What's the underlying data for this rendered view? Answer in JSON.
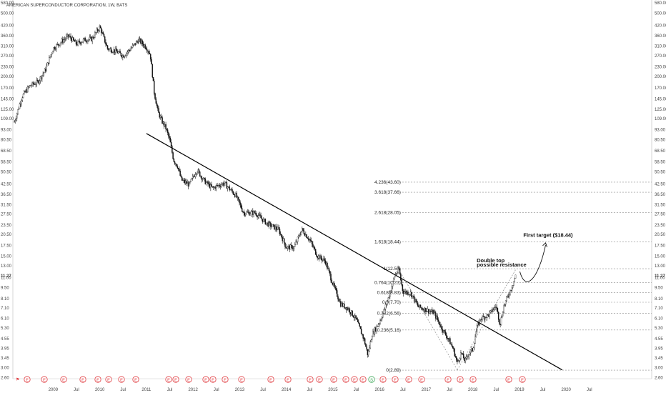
{
  "chart_data": {
    "type": "candlestick",
    "title": "AMERICAN SUPERCONDUCTOR CORPORATION, 1W, BATS",
    "y_scale": "log",
    "ylim": [
      2.28,
      580.0
    ],
    "x_range": [
      "2008-03",
      "2020-12"
    ],
    "last_price": "11.27",
    "y_ticks": [
      "580.00",
      "500.00",
      "420.00",
      "360.00",
      "310.00",
      "270.00",
      "230.00",
      "200.00",
      "170.00",
      "145.00",
      "125.00",
      "109.00",
      "93.00",
      "80.50",
      "68.50",
      "58.50",
      "50.50",
      "42.50",
      "36.50",
      "31.50",
      "27.50",
      "23.50",
      "20.50",
      "17.50",
      "15.00",
      "13.00",
      "11.00",
      "9.50",
      "8.10",
      "7.10",
      "6.10",
      "5.30",
      "4.55",
      "3.95",
      "3.45",
      "3.00",
      "2.60",
      "2.28"
    ],
    "x_ticks": [
      {
        "label": "2009",
        "date": "2009-01"
      },
      {
        "label": "Jul",
        "date": "2009-07"
      },
      {
        "label": "2010",
        "date": "2010-01"
      },
      {
        "label": "Jul",
        "date": "2010-07"
      },
      {
        "label": "2011",
        "date": "2011-01"
      },
      {
        "label": "Jul",
        "date": "2011-07"
      },
      {
        "label": "2012",
        "date": "2012-01"
      },
      {
        "label": "Jul",
        "date": "2012-07"
      },
      {
        "label": "2013",
        "date": "2013-01"
      },
      {
        "label": "Jul",
        "date": "2013-07"
      },
      {
        "label": "2014",
        "date": "2014-01"
      },
      {
        "label": "Jul",
        "date": "2014-07"
      },
      {
        "label": "2015",
        "date": "2015-01"
      },
      {
        "label": "Jul",
        "date": "2015-07"
      },
      {
        "label": "2016",
        "date": "2016-01"
      },
      {
        "label": "Jul",
        "date": "2016-07"
      },
      {
        "label": "2017",
        "date": "2017-01"
      },
      {
        "label": "Jul",
        "date": "2017-07"
      },
      {
        "label": "2018",
        "date": "2018-01"
      },
      {
        "label": "Jul",
        "date": "2018-07"
      },
      {
        "label": "2019",
        "date": "2019-01"
      },
      {
        "label": "Jul",
        "date": "2019-07"
      },
      {
        "label": "2020",
        "date": "2020-01"
      },
      {
        "label": "Jul",
        "date": "2020-07"
      }
    ],
    "price_path": [
      [
        "2008-03",
        104
      ],
      [
        "2008-05",
        150
      ],
      [
        "2008-07",
        175
      ],
      [
        "2008-09",
        185
      ],
      [
        "2008-11",
        220
      ],
      [
        "2009-01",
        300
      ],
      [
        "2009-03",
        330
      ],
      [
        "2009-05",
        360
      ],
      [
        "2009-07",
        320
      ],
      [
        "2009-09",
        340
      ],
      [
        "2009-11",
        345
      ],
      [
        "2010-01",
        410
      ],
      [
        "2010-03",
        300
      ],
      [
        "2010-05",
        290
      ],
      [
        "2010-07",
        270
      ],
      [
        "2010-09",
        300
      ],
      [
        "2010-11",
        340
      ],
      [
        "2011-01",
        305
      ],
      [
        "2011-02",
        275
      ],
      [
        "2011-03",
        160
      ],
      [
        "2011-04",
        120
      ],
      [
        "2011-05",
        105
      ],
      [
        "2011-06",
        95
      ],
      [
        "2011-07",
        80
      ],
      [
        "2011-08",
        60
      ],
      [
        "2011-09",
        55
      ],
      [
        "2011-10",
        45
      ],
      [
        "2011-12",
        42
      ],
      [
        "2012-02",
        52
      ],
      [
        "2012-04",
        44
      ],
      [
        "2012-06",
        40
      ],
      [
        "2012-09",
        43
      ],
      [
        "2012-12",
        36
      ],
      [
        "2013-02",
        28
      ],
      [
        "2013-05",
        28
      ],
      [
        "2013-08",
        24
      ],
      [
        "2013-11",
        22
      ],
      [
        "2014-01",
        17
      ],
      [
        "2014-03",
        17
      ],
      [
        "2014-05",
        22
      ],
      [
        "2014-07",
        19
      ],
      [
        "2014-09",
        15
      ],
      [
        "2014-11",
        14
      ],
      [
        "2015-01",
        10
      ],
      [
        "2015-03",
        7.5
      ],
      [
        "2015-05",
        7
      ],
      [
        "2015-07",
        6
      ],
      [
        "2015-08",
        5.2
      ],
      [
        "2015-09",
        4.5
      ],
      [
        "2015-10",
        3.6
      ],
      [
        "2015-11",
        4.8
      ],
      [
        "2016-01",
        5.8
      ],
      [
        "2016-03",
        7.8
      ],
      [
        "2016-05",
        11.5
      ],
      [
        "2016-06",
        12.3
      ],
      [
        "2016-07",
        9
      ],
      [
        "2016-09",
        8.8
      ],
      [
        "2016-11",
        7.2
      ],
      [
        "2017-01",
        6.9
      ],
      [
        "2017-03",
        6.6
      ],
      [
        "2017-05",
        5.3
      ],
      [
        "2017-07",
        4.4
      ],
      [
        "2017-08",
        3.9
      ],
      [
        "2017-09",
        3.2
      ],
      [
        "2017-10",
        3.7
      ],
      [
        "2017-11",
        3.3
      ],
      [
        "2017-12",
        3.7
      ],
      [
        "2018-01",
        3.9
      ],
      [
        "2018-02",
        5.3
      ],
      [
        "2018-03",
        6.1
      ],
      [
        "2018-05",
        6.4
      ],
      [
        "2018-07",
        7.3
      ],
      [
        "2018-08",
        5.6
      ],
      [
        "2018-09",
        7.3
      ],
      [
        "2018-10",
        8.4
      ],
      [
        "2018-11",
        9.6
      ],
      [
        "2018-12",
        11.27
      ]
    ],
    "trendline": {
      "start": {
        "date": "2011-01",
        "price": 88
      },
      "end": {
        "date": "2019-12",
        "price": 2.9
      }
    },
    "fib_levels": [
      {
        "label": "4.236(43.60)",
        "price": 43.6
      },
      {
        "label": "3.618(37.66)",
        "price": 37.66
      },
      {
        "label": "2.618(28.05)",
        "price": 28.05
      },
      {
        "label": "1.618(18.44)",
        "price": 18.44
      },
      {
        "label": "1(12.50)",
        "price": 12.5
      },
      {
        "label": "0.764(10.23)",
        "price": 10.23
      },
      {
        "label": "0.618(8.83)",
        "price": 8.83
      },
      {
        "label": "0.5(7.70)",
        "price": 7.7
      },
      {
        "label": "0.382(6.56)",
        "price": 6.56
      },
      {
        "label": "0.236(5.16)",
        "price": 5.16
      },
      {
        "label": "0(2.89)",
        "price": 2.89
      }
    ],
    "annotations": [
      {
        "text": "First target ($18.44)",
        "date": "2019-02",
        "price": 19.8
      },
      {
        "text": "Double top",
        "date": "2018-02",
        "price": 13.7
      },
      {
        "text": "possible resistance",
        "date": "2018-02",
        "price": 12.9
      }
    ],
    "event_markers": [
      "E",
      "E",
      "E",
      "E",
      "E",
      "E",
      "E",
      "E",
      "E",
      "E",
      "E",
      "E",
      "E",
      "E",
      "E",
      "E",
      "E",
      "E",
      "E",
      "E",
      "E",
      "E",
      "E",
      "S",
      "E",
      "E",
      "E",
      "E",
      "E",
      "E",
      "E",
      "E",
      "E"
    ],
    "colors": {
      "candles": "#111111",
      "grid": "#999999",
      "trendline": "#000000",
      "event_marker": "#e0393e",
      "dividend_marker": "#37a653"
    }
  }
}
